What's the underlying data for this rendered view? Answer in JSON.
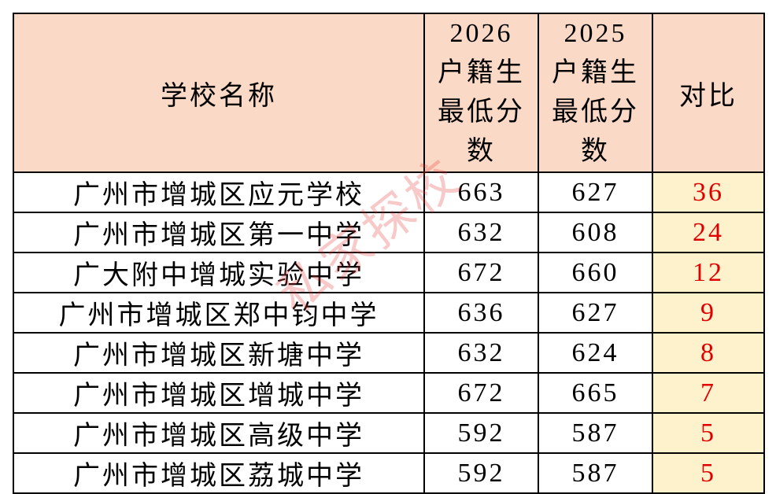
{
  "table": {
    "columns": [
      "学校名称",
      "2026户籍生最低分数",
      "2025户籍生最低分数",
      "对比"
    ],
    "rows": [
      [
        "广州市增城区应元学校",
        663,
        627,
        36
      ],
      [
        "广州市增城区第一中学",
        632,
        608,
        24
      ],
      [
        "广大附中增城实验中学",
        672,
        660,
        12
      ],
      [
        "广州市增城区郑中钧中学",
        636,
        627,
        9
      ],
      [
        "广州市增城区新塘中学",
        632,
        624,
        8
      ],
      [
        "广州市增城区增城中学",
        672,
        665,
        7
      ],
      [
        "广州市增城区高级中学",
        592,
        587,
        5
      ],
      [
        "广州市增城区荔城中学",
        592,
        587,
        5
      ]
    ]
  },
  "watermark": "私家探校"
}
